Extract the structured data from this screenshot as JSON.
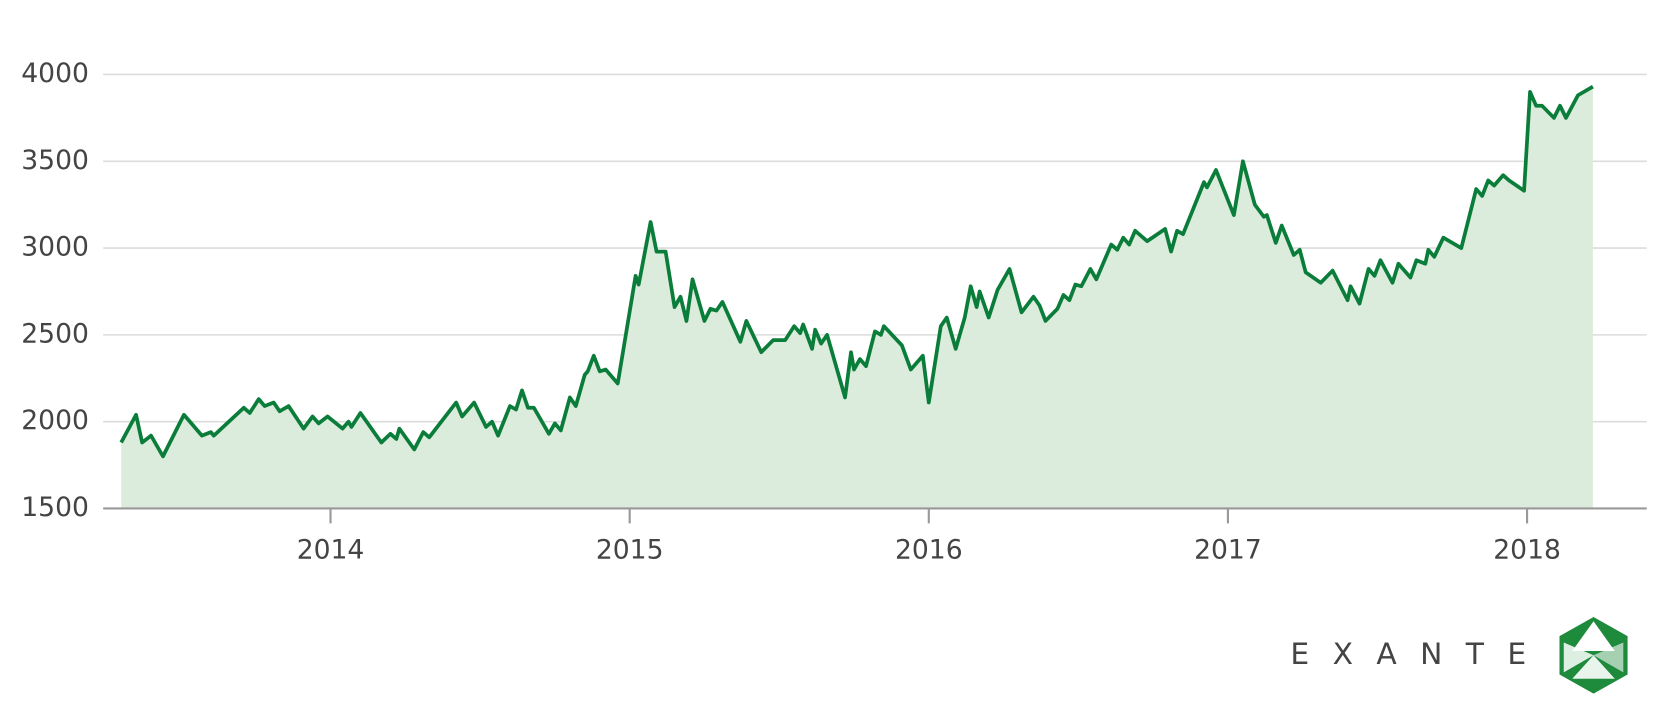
{
  "chart_data": {
    "type": "area",
    "x": [
      2013.3,
      2013.35,
      2013.37,
      2013.4,
      2013.44,
      2013.51,
      2013.57,
      2013.6,
      2013.61,
      2013.71,
      2013.73,
      2013.76,
      2013.78,
      2013.81,
      2013.83,
      2013.86,
      2013.91,
      2013.94,
      2013.96,
      2013.99,
      2014.04,
      2014.06,
      2014.07,
      2014.1,
      2014.17,
      2014.2,
      2014.22,
      2014.23,
      2014.28,
      2014.31,
      2014.33,
      2014.42,
      2014.44,
      2014.48,
      2014.52,
      2014.54,
      2014.56,
      2014.6,
      2014.62,
      2014.64,
      2014.66,
      2014.68,
      2014.73,
      2014.75,
      2014.77,
      2014.8,
      2014.82,
      2014.85,
      2014.86,
      2014.88,
      2014.9,
      2014.92,
      2014.96,
      2015.02,
      2015.03,
      2015.07,
      2015.09,
      2015.12,
      2015.15,
      2015.17,
      2015.19,
      2015.21,
      2015.25,
      2015.27,
      2015.29,
      2015.31,
      2015.37,
      2015.39,
      2015.44,
      2015.48,
      2015.52,
      2015.55,
      2015.57,
      2015.58,
      2015.61,
      2015.62,
      2015.64,
      2015.66,
      2015.72,
      2015.74,
      2015.75,
      2015.77,
      2015.79,
      2015.82,
      2015.84,
      2015.85,
      2015.91,
      2015.94,
      2015.98,
      2016.0,
      2016.04,
      2016.06,
      2016.09,
      2016.12,
      2016.14,
      2016.16,
      2016.17,
      2016.2,
      2016.23,
      2016.27,
      2016.31,
      2016.35,
      2016.37,
      2016.39,
      2016.43,
      2016.45,
      2016.47,
      2016.49,
      2016.51,
      2016.54,
      2016.56,
      2016.61,
      2016.63,
      2016.65,
      2016.67,
      2016.69,
      2016.73,
      2016.79,
      2016.81,
      2016.83,
      2016.85,
      2016.92,
      2016.93,
      2016.96,
      2017.02,
      2017.05,
      2017.09,
      2017.12,
      2017.13,
      2017.16,
      2017.18,
      2017.22,
      2017.24,
      2017.26,
      2017.31,
      2017.35,
      2017.4,
      2017.41,
      2017.44,
      2017.47,
      2017.49,
      2017.51,
      2017.55,
      2017.57,
      2017.61,
      2017.63,
      2017.66,
      2017.67,
      2017.69,
      2017.72,
      2017.78,
      2017.83,
      2017.85,
      2017.87,
      2017.89,
      2017.92,
      2017.94,
      2017.99,
      2018.01,
      2018.03,
      2018.05,
      2018.09,
      2018.11,
      2018.13,
      2018.17,
      2018.22
    ],
    "values": [
      1880,
      2040,
      1880,
      1920,
      1800,
      2040,
      1920,
      1940,
      1920,
      2080,
      2050,
      2130,
      2090,
      2110,
      2060,
      2090,
      1960,
      2030,
      1990,
      2030,
      1960,
      2000,
      1970,
      2050,
      1880,
      1930,
      1900,
      1960,
      1840,
      1940,
      1910,
      2110,
      2030,
      2110,
      1970,
      2000,
      1920,
      2090,
      2070,
      2180,
      2080,
      2080,
      1930,
      1990,
      1950,
      2140,
      2090,
      2270,
      2290,
      2380,
      2290,
      2300,
      2220,
      2840,
      2790,
      3150,
      2980,
      2980,
      2660,
      2720,
      2580,
      2820,
      2580,
      2650,
      2640,
      2690,
      2460,
      2580,
      2400,
      2470,
      2470,
      2550,
      2510,
      2560,
      2420,
      2530,
      2450,
      2500,
      2140,
      2400,
      2300,
      2360,
      2320,
      2520,
      2500,
      2550,
      2440,
      2300,
      2380,
      2110,
      2550,
      2600,
      2420,
      2600,
      2780,
      2660,
      2750,
      2600,
      2760,
      2880,
      2630,
      2720,
      2670,
      2580,
      2650,
      2730,
      2700,
      2790,
      2780,
      2880,
      2820,
      3020,
      2990,
      3060,
      3020,
      3100,
      3040,
      3110,
      2980,
      3100,
      3080,
      3380,
      3350,
      3450,
      3190,
      3500,
      3250,
      3180,
      3190,
      3030,
      3130,
      2960,
      2990,
      2860,
      2800,
      2870,
      2700,
      2780,
      2680,
      2880,
      2840,
      2930,
      2800,
      2910,
      2830,
      2930,
      2910,
      2990,
      2950,
      3060,
      3000,
      3340,
      3300,
      3390,
      3360,
      3420,
      3390,
      3330,
      3900,
      3820,
      3820,
      3750,
      3820,
      3750,
      3880,
      3930
    ],
    "color": "#0b7d3a",
    "fill": "#dcecdc",
    "xlim": [
      2013.24,
      2018.4
    ],
    "xticks": [
      2014,
      2015,
      2016,
      2017,
      2018
    ],
    "ylim": [
      1500,
      4000
    ],
    "yticks": [
      1500,
      2000,
      2500,
      3000,
      3500,
      4000
    ],
    "grid": true
  },
  "logo": "EXANTE"
}
